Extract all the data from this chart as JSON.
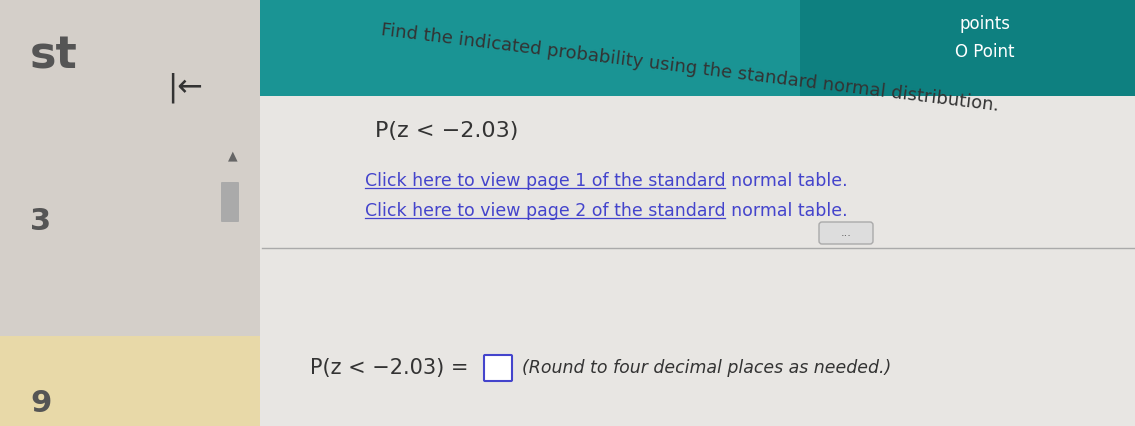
{
  "bg_left_color": "#d4cfc9",
  "bg_main_color": "#e8e6e3",
  "bg_bottom_color": "#e8d9a8",
  "teal_bar_color": "#1a9494",
  "teal_top_color": "#0e8080",
  "sidebar_text_left": "st",
  "sidebar_char": "|←",
  "points_label": "points",
  "point_label": "O Point",
  "main_instruction": "Find the indicated probability using the standard normal distribution.",
  "probability_expr": "P(z < −2.03)",
  "link1": "Click here to view page 1 of the standard normal table.",
  "link2": "Click here to view page 2 of the standard normal table.",
  "bottom_expr": "P(z < −2.03) =",
  "round_note": "(Round to four decimal places as needed.)",
  "sidebar_number_top": "3",
  "sidebar_number_bottom": "9",
  "divider_color": "#aaaaaa",
  "link_color": "#4444cc",
  "text_color": "#333333",
  "scroll_pill_color": "#cccccc"
}
